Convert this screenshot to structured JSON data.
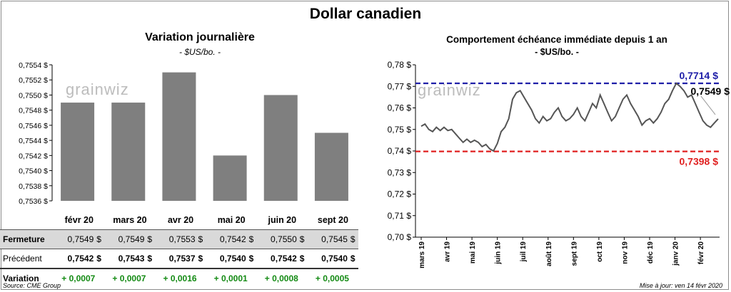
{
  "title": "Dollar canadien",
  "left_panel": {
    "title": "Variation  journalière",
    "subtitle": "- $US/bo. -"
  },
  "right_panel": {
    "title": "Comportement échéance immédiate depuis 1 an",
    "subtitle": "- $US/bo. -"
  },
  "watermark": "grainwiz",
  "chart_data": [
    {
      "type": "bar",
      "title": "Variation  journalière",
      "subtitle": "- $US/bo. -",
      "categories": [
        "févr 20",
        "mars 20",
        "avr 20",
        "mai 20",
        "juin 20",
        "sept 20"
      ],
      "values": [
        0.7549,
        0.7549,
        0.7553,
        0.7542,
        0.755,
        0.7545
      ],
      "ylim": [
        0.7536,
        0.7554
      ],
      "yticks": [
        "0,7554 $",
        "0,7552 $",
        "0,7550 $",
        "0,7548 $",
        "0,7546 $",
        "0,7544 $",
        "0,7542 $",
        "0,7540 $",
        "0,7538 $",
        "0,7536 $"
      ],
      "bar_color": "#7f7f7f"
    },
    {
      "type": "line",
      "title": "Comportement échéance immédiate depuis 1 an",
      "subtitle": "- $US/bo. -",
      "ylim": [
        0.7,
        0.78
      ],
      "yticks": [
        "0,78 $",
        "0,77 $",
        "0,76 $",
        "0,75 $",
        "0,74 $",
        "0,73 $",
        "0,72 $",
        "0,71 $",
        "0,70 $"
      ],
      "xlabels": [
        "mars 19",
        "avr 19",
        "mai 19",
        "juin 19",
        "juil 19",
        "août 19",
        "sept 19",
        "oct 19",
        "nov 19",
        "déc 19",
        "janv 20",
        "févr 20"
      ],
      "x": [
        0.0,
        0.15,
        0.3,
        0.45,
        0.6,
        0.75,
        0.9,
        1.05,
        1.2,
        1.35,
        1.5,
        1.65,
        1.8,
        1.95,
        2.1,
        2.25,
        2.4,
        2.55,
        2.7,
        2.85,
        3.0,
        3.15,
        3.3,
        3.45,
        3.6,
        3.75,
        3.9,
        4.05,
        4.2,
        4.35,
        4.5,
        4.65,
        4.8,
        4.95,
        5.1,
        5.25,
        5.4,
        5.55,
        5.7,
        5.85,
        6.0,
        6.15,
        6.3,
        6.45,
        6.6,
        6.75,
        6.9,
        7.05,
        7.2,
        7.35,
        7.5,
        7.65,
        7.8,
        7.95,
        8.1,
        8.25,
        8.4,
        8.55,
        8.7,
        8.85,
        9.0,
        9.15,
        9.3,
        9.45,
        9.6,
        9.75,
        9.9,
        10.05,
        10.2,
        10.35,
        10.5,
        10.65,
        10.8,
        10.95,
        11.1,
        11.25,
        11.4,
        11.55,
        11.7
      ],
      "values": [
        0.7515,
        0.7525,
        0.75,
        0.749,
        0.751,
        0.7495,
        0.751,
        0.7495,
        0.75,
        0.748,
        0.746,
        0.744,
        0.7455,
        0.744,
        0.745,
        0.744,
        0.742,
        0.743,
        0.741,
        0.74,
        0.7435,
        0.749,
        0.751,
        0.755,
        0.764,
        0.767,
        0.768,
        0.765,
        0.762,
        0.759,
        0.755,
        0.753,
        0.756,
        0.754,
        0.755,
        0.758,
        0.76,
        0.756,
        0.754,
        0.755,
        0.757,
        0.76,
        0.756,
        0.754,
        0.758,
        0.762,
        0.76,
        0.766,
        0.762,
        0.758,
        0.754,
        0.756,
        0.76,
        0.764,
        0.766,
        0.762,
        0.759,
        0.756,
        0.752,
        0.754,
        0.755,
        0.753,
        0.755,
        0.758,
        0.762,
        0.764,
        0.768,
        0.7714,
        0.77,
        0.768,
        0.765,
        0.766,
        0.762,
        0.758,
        0.754,
        0.752,
        0.751,
        0.753,
        0.7549
      ],
      "max_line": {
        "value": 0.7714,
        "label": "0,7714 $",
        "color": "#1f1fa8"
      },
      "min_line": {
        "value": 0.7398,
        "label": "0,7398 $",
        "color": "#e02020"
      },
      "last_label": "0,7549 $",
      "line_color": "#555555"
    }
  ],
  "table": {
    "headers": [
      "févr 20",
      "mars 20",
      "avr 20",
      "mai 20",
      "juin 20",
      "sept 20"
    ],
    "rows": [
      {
        "label": "Fermeture",
        "values": [
          "0,7549",
          "0,7549",
          "0,7553",
          "0,7542",
          "0,7550",
          "0,7545"
        ],
        "currency": "$"
      },
      {
        "label": "Précédent",
        "values": [
          "0,7542",
          "0,7543",
          "0,7537",
          "0,7540",
          "0,7542",
          "0,7540"
        ],
        "currency": "$"
      },
      {
        "label": "Variation",
        "values": [
          "+ 0,0007",
          "+ 0,0007",
          "+ 0,0016",
          "+ 0,0001",
          "+ 0,0008",
          "+ 0,0005"
        ],
        "currency": ""
      }
    ]
  },
  "footer": {
    "source": "Source: CME Group",
    "updated": "Mise à jour: ven 14 févr 2020"
  }
}
